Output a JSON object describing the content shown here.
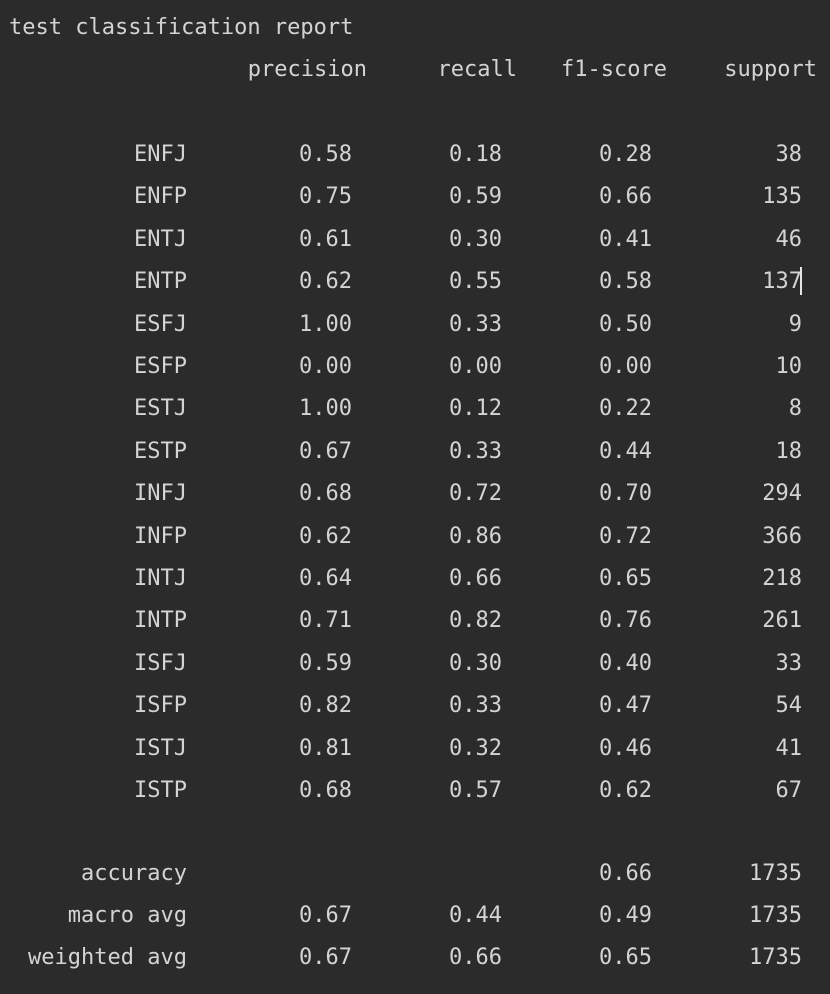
{
  "title": "test classification report",
  "headers": {
    "precision": "precision",
    "recall": "recall",
    "f1": "f1-score",
    "support": "support"
  },
  "rows": [
    {
      "label": "ENFJ",
      "precision": "0.58",
      "recall": "0.18",
      "f1": "0.28",
      "support": "38"
    },
    {
      "label": "ENFP",
      "precision": "0.75",
      "recall": "0.59",
      "f1": "0.66",
      "support": "135"
    },
    {
      "label": "ENTJ",
      "precision": "0.61",
      "recall": "0.30",
      "f1": "0.41",
      "support": "46"
    },
    {
      "label": "ENTP",
      "precision": "0.62",
      "recall": "0.55",
      "f1": "0.58",
      "support": "137"
    },
    {
      "label": "ESFJ",
      "precision": "1.00",
      "recall": "0.33",
      "f1": "0.50",
      "support": "9"
    },
    {
      "label": "ESFP",
      "precision": "0.00",
      "recall": "0.00",
      "f1": "0.00",
      "support": "10"
    },
    {
      "label": "ESTJ",
      "precision": "1.00",
      "recall": "0.12",
      "f1": "0.22",
      "support": "8"
    },
    {
      "label": "ESTP",
      "precision": "0.67",
      "recall": "0.33",
      "f1": "0.44",
      "support": "18"
    },
    {
      "label": "INFJ",
      "precision": "0.68",
      "recall": "0.72",
      "f1": "0.70",
      "support": "294"
    },
    {
      "label": "INFP",
      "precision": "0.62",
      "recall": "0.86",
      "f1": "0.72",
      "support": "366"
    },
    {
      "label": "INTJ",
      "precision": "0.64",
      "recall": "0.66",
      "f1": "0.65",
      "support": "218"
    },
    {
      "label": "INTP",
      "precision": "0.71",
      "recall": "0.82",
      "f1": "0.76",
      "support": "261"
    },
    {
      "label": "ISFJ",
      "precision": "0.59",
      "recall": "0.30",
      "f1": "0.40",
      "support": "33"
    },
    {
      "label": "ISFP",
      "precision": "0.82",
      "recall": "0.33",
      "f1": "0.47",
      "support": "54"
    },
    {
      "label": "ISTJ",
      "precision": "0.81",
      "recall": "0.32",
      "f1": "0.46",
      "support": "41"
    },
    {
      "label": "ISTP",
      "precision": "0.68",
      "recall": "0.57",
      "f1": "0.62",
      "support": "67"
    }
  ],
  "summary": [
    {
      "label": "accuracy",
      "precision": "",
      "recall": "",
      "f1": "0.66",
      "support": "1735"
    },
    {
      "label": "macro avg",
      "precision": "0.67",
      "recall": "0.44",
      "f1": "0.49",
      "support": "1735"
    },
    {
      "label": "weighted avg",
      "precision": "0.67",
      "recall": "0.66",
      "f1": "0.65",
      "support": "1735"
    }
  ],
  "colors": {
    "background": "#2b2b2b",
    "text": "#d4d4d4"
  }
}
